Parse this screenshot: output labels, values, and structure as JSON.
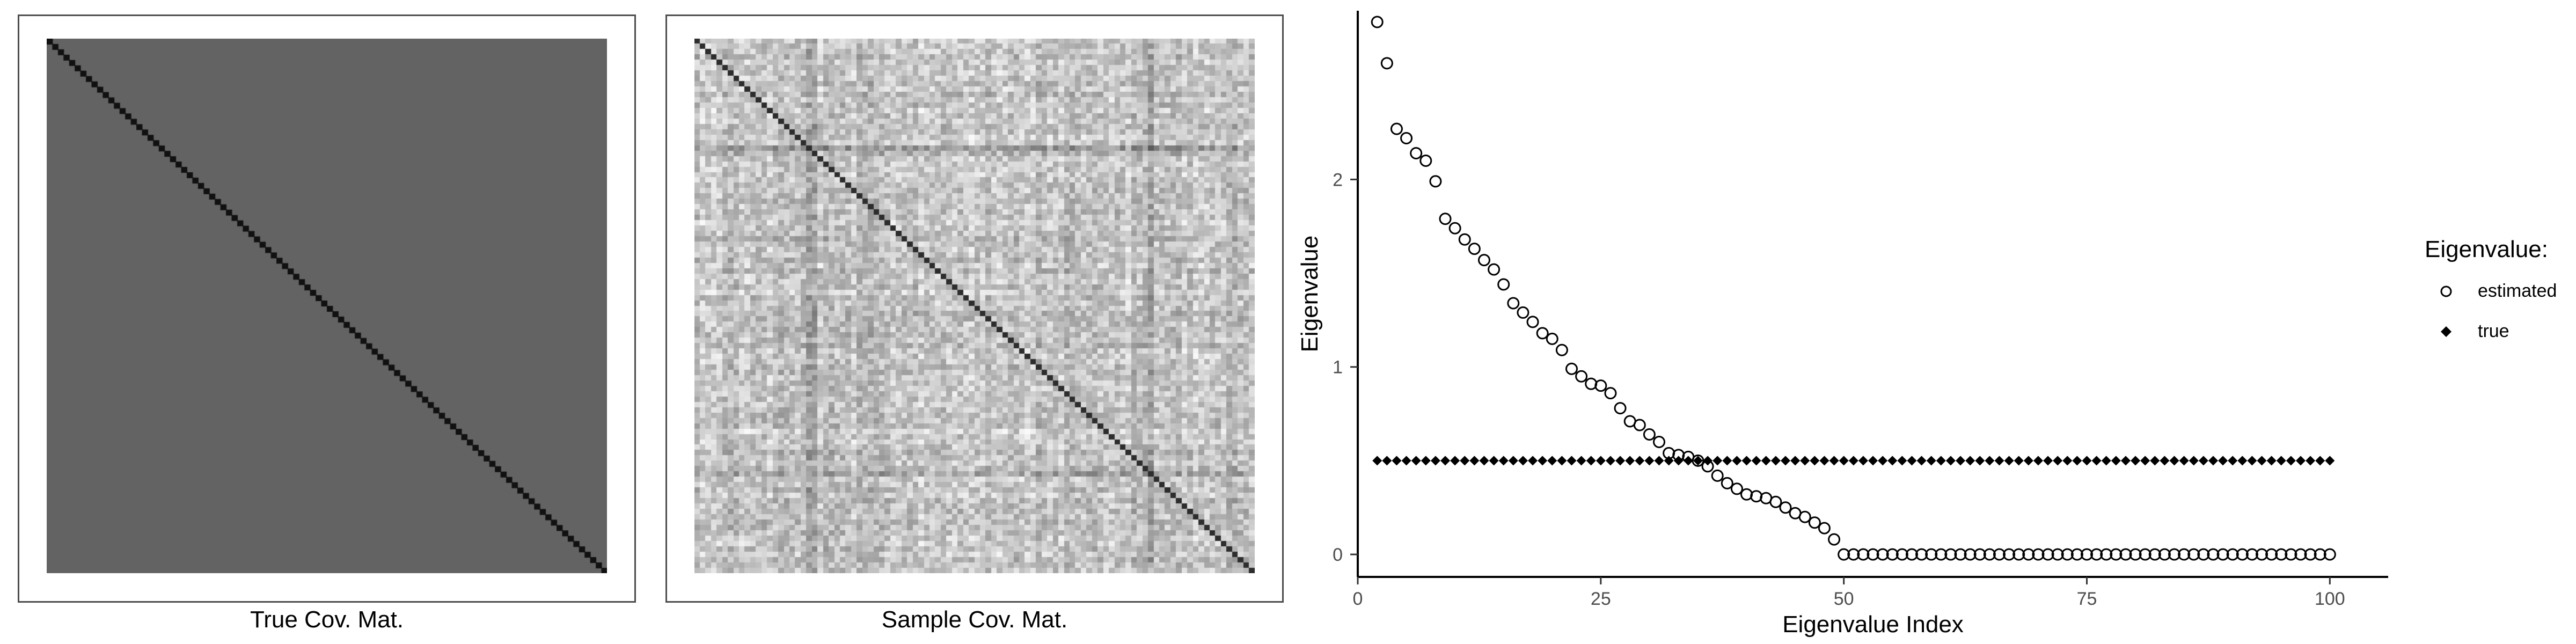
{
  "panels": [
    {
      "caption": "True Cov. Mat."
    },
    {
      "caption": "Sample Cov. Mat."
    }
  ],
  "chart_data": [
    {
      "type": "heatmap",
      "title": "True Cov. Mat.",
      "size": 100,
      "off_diagonal_value": "uniform",
      "diagonal": "dark",
      "colors": {
        "background": "#636363",
        "diagonal": "#111111"
      }
    },
    {
      "type": "heatmap",
      "title": "Sample Cov. Mat.",
      "size": 100,
      "off_diagonal_value": "noisy (light gray, random)",
      "diagonal": "dark",
      "colors": {
        "light": "#f2f2f2",
        "dark": "#1a1a1a"
      }
    },
    {
      "type": "scatter",
      "xlabel": "Eigenvalue Index",
      "ylabel": "Eigenvalue",
      "xlim": [
        0,
        106
      ],
      "ylim": [
        -0.12,
        2.9
      ],
      "xticks": [
        0,
        25,
        50,
        75,
        100
      ],
      "yticks": [
        0,
        1,
        2
      ],
      "grid": false,
      "legend": {
        "title": "Eigenvalue:",
        "placement": "right",
        "entries": [
          {
            "label": "estimated",
            "marker": "open-circle"
          },
          {
            "label": "true",
            "marker": "filled-diamond"
          }
        ]
      },
      "series": [
        {
          "name": "estimated",
          "marker": "open-circle",
          "x": [
            2,
            3,
            4,
            5,
            6,
            7,
            8,
            9,
            10,
            11,
            12,
            13,
            14,
            15,
            16,
            17,
            18,
            19,
            20,
            21,
            22,
            23,
            24,
            25,
            26,
            27,
            28,
            29,
            30,
            31,
            32,
            33,
            34,
            35,
            36,
            37,
            38,
            39,
            40,
            41,
            42,
            43,
            44,
            45,
            46,
            47,
            48,
            49,
            50,
            51,
            52,
            53,
            54,
            55,
            56,
            57,
            58,
            59,
            60,
            61,
            62,
            63,
            64,
            65,
            66,
            67,
            68,
            69,
            70,
            71,
            72,
            73,
            74,
            75,
            76,
            77,
            78,
            79,
            80,
            81,
            82,
            83,
            84,
            85,
            86,
            87,
            88,
            89,
            90,
            91,
            92,
            93,
            94,
            95,
            96,
            97,
            98,
            99,
            100
          ],
          "y": [
            2.84,
            2.62,
            2.27,
            2.22,
            2.14,
            2.1,
            1.99,
            1.79,
            1.74,
            1.68,
            1.63,
            1.57,
            1.52,
            1.44,
            1.34,
            1.29,
            1.24,
            1.18,
            1.15,
            1.09,
            0.99,
            0.95,
            0.91,
            0.9,
            0.86,
            0.78,
            0.71,
            0.69,
            0.64,
            0.6,
            0.54,
            0.53,
            0.52,
            0.5,
            0.47,
            0.42,
            0.38,
            0.35,
            0.32,
            0.31,
            0.3,
            0.28,
            0.25,
            0.22,
            0.2,
            0.17,
            0.14,
            0.08,
            0.0,
            0.0,
            0.0,
            0.0,
            0.0,
            0.0,
            0.0,
            0.0,
            0.0,
            0.0,
            0.0,
            0.0,
            0.0,
            0.0,
            0.0,
            0.0,
            0.0,
            0.0,
            0.0,
            0.0,
            0.0,
            0.0,
            0.0,
            0.0,
            0.0,
            0.0,
            0.0,
            0.0,
            0.0,
            0.0,
            0.0,
            0.0,
            0.0,
            0.0,
            0.0,
            0.0,
            0.0,
            0.0,
            0.0,
            0.0,
            0.0,
            0.0,
            0.0,
            0.0,
            0.0,
            0.0,
            0.0,
            0.0,
            0.0,
            0.0,
            0.0
          ]
        },
        {
          "name": "true",
          "marker": "filled-diamond",
          "x": [
            2,
            3,
            4,
            5,
            6,
            7,
            8,
            9,
            10,
            11,
            12,
            13,
            14,
            15,
            16,
            17,
            18,
            19,
            20,
            21,
            22,
            23,
            24,
            25,
            26,
            27,
            28,
            29,
            30,
            31,
            32,
            33,
            34,
            35,
            36,
            37,
            38,
            39,
            40,
            41,
            42,
            43,
            44,
            45,
            46,
            47,
            48,
            49,
            50,
            51,
            52,
            53,
            54,
            55,
            56,
            57,
            58,
            59,
            60,
            61,
            62,
            63,
            64,
            65,
            66,
            67,
            68,
            69,
            70,
            71,
            72,
            73,
            74,
            75,
            76,
            77,
            78,
            79,
            80,
            81,
            82,
            83,
            84,
            85,
            86,
            87,
            88,
            89,
            90,
            91,
            92,
            93,
            94,
            95,
            96,
            97,
            98,
            99,
            100
          ],
          "y": [
            0.5,
            0.5,
            0.5,
            0.5,
            0.5,
            0.5,
            0.5,
            0.5,
            0.5,
            0.5,
            0.5,
            0.5,
            0.5,
            0.5,
            0.5,
            0.5,
            0.5,
            0.5,
            0.5,
            0.5,
            0.5,
            0.5,
            0.5,
            0.5,
            0.5,
            0.5,
            0.5,
            0.5,
            0.5,
            0.5,
            0.5,
            0.5,
            0.5,
            0.5,
            0.5,
            0.5,
            0.5,
            0.5,
            0.5,
            0.5,
            0.5,
            0.5,
            0.5,
            0.5,
            0.5,
            0.5,
            0.5,
            0.5,
            0.5,
            0.5,
            0.5,
            0.5,
            0.5,
            0.5,
            0.5,
            0.5,
            0.5,
            0.5,
            0.5,
            0.5,
            0.5,
            0.5,
            0.5,
            0.5,
            0.5,
            0.5,
            0.5,
            0.5,
            0.5,
            0.5,
            0.5,
            0.5,
            0.5,
            0.5,
            0.5,
            0.5,
            0.5,
            0.5,
            0.5,
            0.5,
            0.5,
            0.5,
            0.5,
            0.5,
            0.5,
            0.5,
            0.5,
            0.5,
            0.5,
            0.5,
            0.5,
            0.5,
            0.5,
            0.5,
            0.5,
            0.5,
            0.5,
            0.5,
            0.5
          ]
        }
      ]
    }
  ]
}
